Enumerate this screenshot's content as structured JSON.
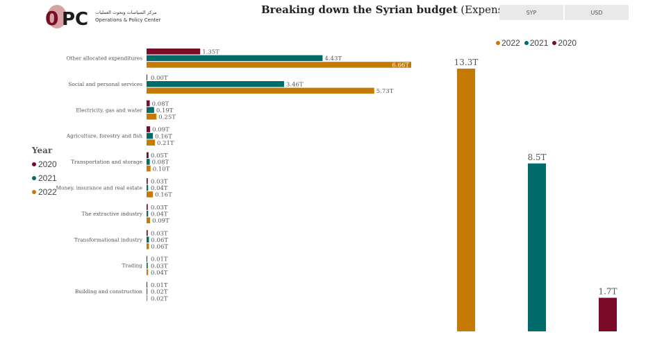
{
  "header": {
    "logo_text_ar": "مركز السياسات وبحوث العمليات",
    "logo_text_en": "Operations & Policy Center",
    "title_bold": "Breaking down the Syrian budget",
    "title_rest": " (Expenses)"
  },
  "currency_buttons": [
    "SYP",
    "USD"
  ],
  "colors": {
    "2020": "#7a0a25",
    "2021": "#006b6b",
    "2022": "#c47a05"
  },
  "legend_left": {
    "title": "Year",
    "items": [
      "2020",
      "2021",
      "2022"
    ]
  },
  "legend_right": {
    "items": [
      "2022",
      "2021",
      "2020"
    ]
  },
  "chart_data": [
    {
      "type": "bar",
      "orientation": "horizontal",
      "categories": [
        "Other allocated expenditures",
        "Social and personal services",
        "Electricity, gas and water",
        "Agriculture, forestry and fish",
        "Transportation and storage",
        "Money, insurance and real estate",
        "The extractive industry",
        "Transformational industry",
        "Trading",
        "Building and construction"
      ],
      "series": [
        {
          "name": "2020",
          "values": [
            1.35,
            0.0,
            0.08,
            0.09,
            0.05,
            0.03,
            0.03,
            0.03,
            0.01,
            0.01
          ],
          "labels": [
            "1.35T",
            "0.00T",
            "0.08T",
            "0.09T",
            "0.05T",
            "0.03T",
            "0.03T",
            "0.03T",
            "0.01T",
            "0.01T"
          ]
        },
        {
          "name": "2021",
          "values": [
            4.43,
            3.46,
            0.19,
            0.16,
            0.08,
            0.04,
            0.04,
            0.06,
            0.03,
            0.02
          ],
          "labels": [
            "4.43T",
            "3.46T",
            "0.19T",
            "0.16T",
            "0.08T",
            "0.04T",
            "0.04T",
            "0.06T",
            "0.03T",
            "0.02T"
          ]
        },
        {
          "name": "2022",
          "values": [
            6.66,
            5.73,
            0.25,
            0.21,
            0.1,
            0.16,
            0.09,
            0.06,
            0.04,
            0.02
          ],
          "labels": [
            "6.66T",
            "5.73T",
            "0.25T",
            "0.21T",
            "0.10T",
            "0.16T",
            "0.09T",
            "0.06T",
            "0.04T",
            "0.02T"
          ]
        }
      ],
      "legend": "left"
    },
    {
      "type": "bar",
      "categories": [
        "2022",
        "2021",
        "2020"
      ],
      "values": [
        13.3,
        8.5,
        1.7
      ],
      "labels": [
        "13.3T",
        "8.5T",
        "1.7T"
      ],
      "legend": "top-right"
    }
  ]
}
